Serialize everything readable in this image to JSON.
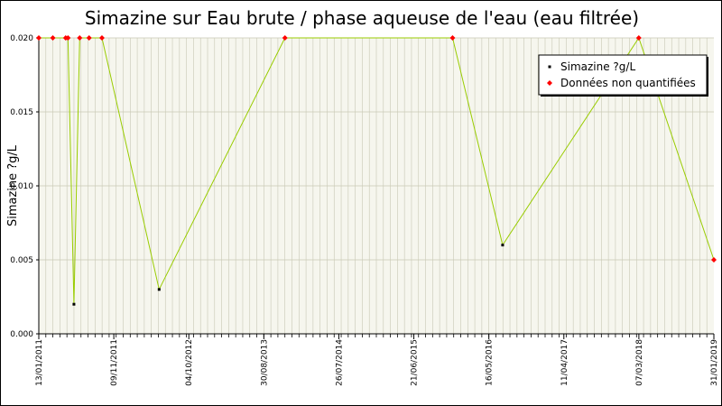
{
  "chart_data": {
    "type": "line",
    "title": "Simazine sur Eau brute / phase aqueuse de l'eau (eau filtrée)",
    "ylabel": "Simazine ?g/L",
    "xlabel": "",
    "ylim": [
      0,
      0.02
    ],
    "yticks": [
      0.0,
      0.005,
      0.01,
      0.015,
      0.02
    ],
    "ytick_labels": [
      "0.000",
      "0.005",
      "0.010",
      "0.015",
      "0.020"
    ],
    "xlim": [
      "2011-01-13",
      "2019-01-31"
    ],
    "xtick_labels": [
      "13/01/2011",
      "09/11/2011",
      "04/10/2012",
      "30/08/2013",
      "26/07/2014",
      "21/06/2015",
      "16/05/2016",
      "11/04/2017",
      "07/03/2018",
      "31/01/2019"
    ],
    "grid": true,
    "legend_position": "top-right",
    "colors": {
      "line": "#99cc00",
      "measured_marker": "#000000",
      "non_quantified_marker": "#ff0000",
      "plot_background": "#f6f6ee",
      "grid": "#c8c8b4"
    },
    "series": [
      {
        "name": "Simazine ?g/L",
        "x": [
          "2011-01-13",
          "2011-03-15",
          "2011-05-10",
          "2011-05-20",
          "2011-06-15",
          "2011-07-10",
          "2011-08-20",
          "2011-10-15",
          "2012-06-20",
          "2013-12-20",
          "2015-12-20",
          "2016-07-25",
          "2018-03-10",
          "2019-01-31"
        ],
        "values": [
          0.02,
          0.02,
          0.02,
          0.02,
          0.002,
          0.02,
          0.02,
          0.02,
          0.003,
          0.02,
          0.02,
          0.006,
          0.02,
          0.005
        ],
        "non_quantified": [
          true,
          true,
          true,
          true,
          false,
          true,
          true,
          true,
          false,
          true,
          true,
          false,
          true,
          true
        ]
      }
    ],
    "legend": [
      {
        "label": "Simazine ?g/L",
        "marker": "measured"
      },
      {
        "label": "Données non quantifiées",
        "marker": "non_quantified"
      }
    ]
  }
}
